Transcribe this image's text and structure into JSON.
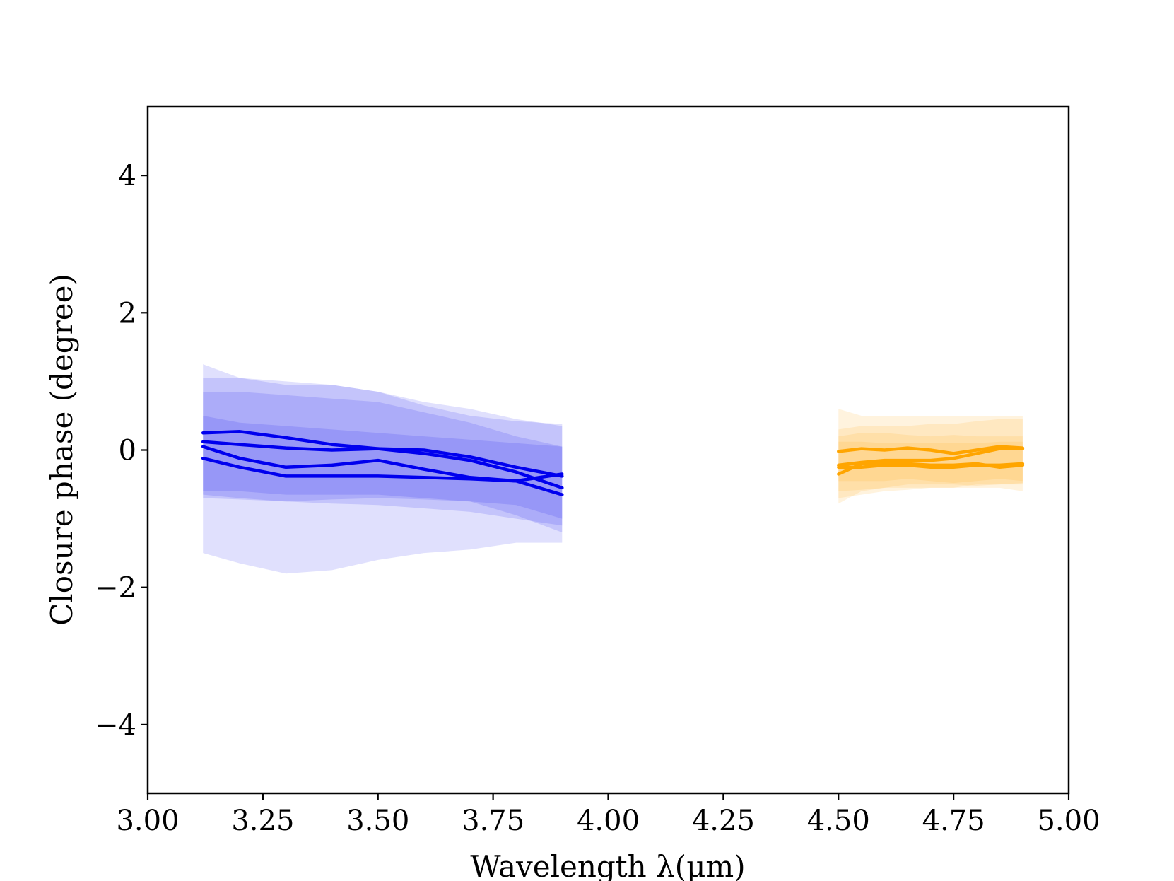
{
  "chart_data": {
    "type": "line",
    "title": "",
    "xlabel": "Wavelength λ(μm)",
    "ylabel": "Closure phase (degree)",
    "xlim": [
      3.0,
      5.0
    ],
    "ylim": [
      -5.0,
      5.0
    ],
    "xticks": [
      3.0,
      3.25,
      3.5,
      3.75,
      4.0,
      4.25,
      4.5,
      4.75,
      5.0
    ],
    "xtick_labels": [
      "3.00",
      "3.25",
      "3.50",
      "3.75",
      "4.00",
      "4.25",
      "4.50",
      "4.75",
      "5.00"
    ],
    "yticks": [
      -4,
      -2,
      0,
      2,
      4
    ],
    "ytick_labels": [
      "−4",
      "−2",
      "0",
      "2",
      "4"
    ],
    "grid": false,
    "legend": "none",
    "colors": {
      "L_band": "#0000ee",
      "M_band": "#ffa500"
    },
    "series": [
      {
        "band": "L",
        "x": [
          3.12,
          3.2,
          3.3,
          3.4,
          3.5,
          3.6,
          3.7,
          3.8,
          3.9
        ],
        "y": [
          0.25,
          0.27,
          0.18,
          0.08,
          0.02,
          -0.05,
          -0.15,
          -0.32,
          -0.55
        ],
        "lower": [
          -0.6,
          -0.6,
          -0.65,
          -0.65,
          -0.65,
          -0.7,
          -0.75,
          -0.95,
          -1.2
        ],
        "upper": [
          1.05,
          1.05,
          1.0,
          0.95,
          0.85,
          0.7,
          0.6,
          0.45,
          0.35
        ]
      },
      {
        "band": "L",
        "x": [
          3.12,
          3.2,
          3.3,
          3.4,
          3.5,
          3.6,
          3.7,
          3.8,
          3.9
        ],
        "y": [
          0.12,
          0.08,
          0.03,
          0.0,
          0.02,
          0.0,
          -0.1,
          -0.25,
          -0.38
        ],
        "lower": [
          -0.7,
          -0.72,
          -0.75,
          -0.78,
          -0.8,
          -0.85,
          -0.9,
          -1.0,
          -1.1
        ],
        "upper": [
          0.85,
          0.85,
          0.8,
          0.75,
          0.7,
          0.55,
          0.4,
          0.2,
          0.05
        ]
      },
      {
        "band": "L",
        "x": [
          3.12,
          3.2,
          3.3,
          3.4,
          3.5,
          3.6,
          3.7,
          3.8,
          3.9
        ],
        "y": [
          0.05,
          -0.12,
          -0.25,
          -0.22,
          -0.15,
          -0.28,
          -0.4,
          -0.45,
          -0.35
        ],
        "lower": [
          -1.5,
          -1.65,
          -1.8,
          -1.75,
          -1.6,
          -1.5,
          -1.45,
          -1.35,
          -1.35
        ],
        "upper": [
          1.25,
          1.05,
          0.95,
          0.95,
          0.85,
          0.65,
          0.5,
          0.42,
          0.38
        ]
      },
      {
        "band": "L",
        "x": [
          3.12,
          3.2,
          3.3,
          3.4,
          3.5,
          3.6,
          3.7,
          3.8,
          3.9
        ],
        "y": [
          -0.12,
          -0.25,
          -0.38,
          -0.38,
          -0.38,
          -0.4,
          -0.42,
          -0.45,
          -0.65
        ],
        "lower": [
          -0.65,
          -0.7,
          -0.75,
          -0.72,
          -0.7,
          -0.72,
          -0.75,
          -0.8,
          -1.0
        ],
        "upper": [
          0.5,
          0.4,
          0.35,
          0.3,
          0.25,
          0.2,
          0.15,
          0.1,
          0.05
        ]
      },
      {
        "band": "M",
        "x": [
          4.5,
          4.55,
          4.6,
          4.65,
          4.7,
          4.75,
          4.8,
          4.85,
          4.9
        ],
        "y": [
          -0.02,
          0.02,
          0.0,
          0.03,
          0.0,
          -0.05,
          0.0,
          0.05,
          0.03
        ],
        "lower": [
          -0.45,
          -0.45,
          -0.45,
          -0.42,
          -0.45,
          -0.48,
          -0.45,
          -0.42,
          -0.45
        ],
        "upper": [
          0.6,
          0.5,
          0.5,
          0.5,
          0.5,
          0.5,
          0.5,
          0.5,
          0.5
        ]
      },
      {
        "band": "M",
        "x": [
          4.5,
          4.55,
          4.6,
          4.65,
          4.7,
          4.75,
          4.8,
          4.85,
          4.9
        ],
        "y": [
          -0.22,
          -0.18,
          -0.15,
          -0.15,
          -0.15,
          -0.12,
          -0.05,
          0.02,
          0.02
        ],
        "lower": [
          -0.7,
          -0.65,
          -0.6,
          -0.58,
          -0.55,
          -0.55,
          -0.55,
          -0.55,
          -0.6
        ],
        "upper": [
          0.3,
          0.35,
          0.35,
          0.35,
          0.38,
          0.38,
          0.42,
          0.45,
          0.45
        ]
      },
      {
        "band": "M",
        "x": [
          4.5,
          4.55,
          4.6,
          4.65,
          4.7,
          4.75,
          4.8,
          4.85,
          4.9
        ],
        "y": [
          -0.35,
          -0.2,
          -0.18,
          -0.2,
          -0.22,
          -0.22,
          -0.2,
          -0.25,
          -0.22
        ],
        "lower": [
          -0.78,
          -0.6,
          -0.55,
          -0.5,
          -0.5,
          -0.5,
          -0.52,
          -0.5,
          -0.5
        ],
        "upper": [
          0.2,
          0.25,
          0.25,
          0.22,
          0.2,
          0.22,
          0.2,
          0.2,
          0.2
        ]
      },
      {
        "band": "M",
        "x": [
          4.5,
          4.55,
          4.6,
          4.65,
          4.7,
          4.75,
          4.8,
          4.85,
          4.9
        ],
        "y": [
          -0.25,
          -0.25,
          -0.22,
          -0.22,
          -0.25,
          -0.25,
          -0.22,
          -0.22,
          -0.2
        ],
        "lower": [
          -0.6,
          -0.58,
          -0.55,
          -0.55,
          -0.55,
          -0.55,
          -0.5,
          -0.5,
          -0.48
        ],
        "upper": [
          0.12,
          0.12,
          0.1,
          0.1,
          0.1,
          0.1,
          0.1,
          0.12,
          0.12
        ]
      }
    ]
  }
}
